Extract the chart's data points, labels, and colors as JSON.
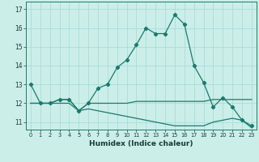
{
  "title": "",
  "xlabel": "Humidex (Indice chaleur)",
  "ylabel": "",
  "background_color": "#cceee8",
  "grid_color": "#aaddda",
  "line_color": "#1a7a6e",
  "x_values": [
    0,
    1,
    2,
    3,
    4,
    5,
    6,
    7,
    8,
    9,
    10,
    11,
    12,
    13,
    14,
    15,
    16,
    17,
    18,
    19,
    20,
    21,
    22,
    23
  ],
  "series1": [
    13.0,
    12.0,
    12.0,
    12.2,
    12.2,
    11.6,
    12.0,
    12.8,
    13.0,
    13.9,
    14.3,
    15.1,
    16.0,
    15.7,
    15.7,
    16.7,
    16.2,
    14.0,
    13.1,
    11.8,
    12.3,
    11.8,
    11.1,
    10.8
  ],
  "series2": [
    12.0,
    12.0,
    12.0,
    12.2,
    12.2,
    11.6,
    12.0,
    12.0,
    12.0,
    12.0,
    12.0,
    12.1,
    12.1,
    12.1,
    12.1,
    12.1,
    12.1,
    12.1,
    12.1,
    12.2,
    12.2,
    12.2,
    12.2,
    12.2
  ],
  "series3": [
    12.0,
    12.0,
    12.0,
    12.0,
    12.0,
    11.6,
    11.7,
    11.6,
    11.5,
    11.4,
    11.3,
    11.2,
    11.1,
    11.0,
    10.9,
    10.8,
    10.8,
    10.8,
    10.8,
    11.0,
    11.1,
    11.2,
    11.1,
    10.7
  ],
  "ylim": [
    10.6,
    17.4
  ],
  "xlim": [
    -0.5,
    23.5
  ],
  "yticks": [
    11,
    12,
    13,
    14,
    15,
    16,
    17
  ],
  "xticks": [
    0,
    1,
    2,
    3,
    4,
    5,
    6,
    7,
    8,
    9,
    10,
    11,
    12,
    13,
    14,
    15,
    16,
    17,
    18,
    19,
    20,
    21,
    22,
    23
  ]
}
